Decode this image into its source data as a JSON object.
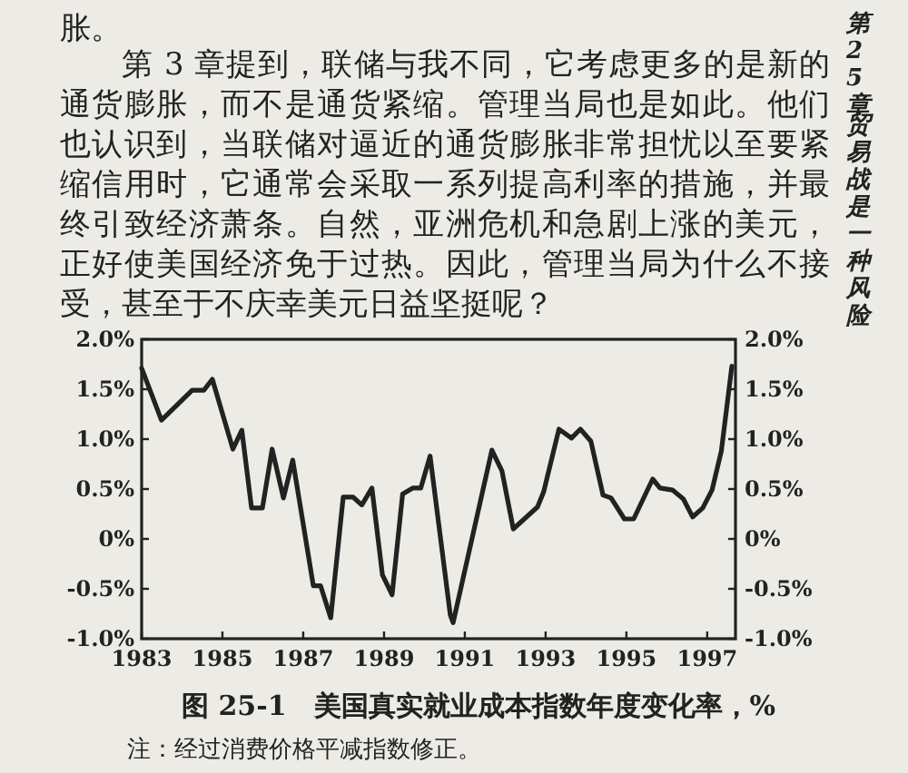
{
  "chart_data": {
    "type": "line",
    "title": "图 25-1　美国真实就业成本指数年度变化率，%",
    "annotations": [
      "胀。",
      "第 3 章提到，联储与我不同，它考虑更多的是新的通货膨胀，而不是通货紧缩。管理当局也是如此。他们也认识到，当联储对逼近的通货膨胀非常担忧以至要紧缩信用时，它通常会采取一系列提高利率的措施，并最终引致经济萧条。自然，亚洲危机和急剧上涨的美元，正好使美国经济免于过热。因此，管理当局为什么不接受，甚至于不庆幸美元日益坚挺呢？",
      "第25章",
      "贸易战是一种风险",
      "注：经过消费价格平减指数修正。"
    ],
    "x": [
      1983.0,
      1983.49,
      1984.25,
      1984.54,
      1984.75,
      1985.26,
      1985.48,
      1985.72,
      1985.99,
      1986.23,
      1986.51,
      1986.74,
      1987.25,
      1987.43,
      1987.68,
      1987.99,
      1988.23,
      1988.45,
      1988.7,
      1988.96,
      1989.2,
      1989.46,
      1989.71,
      1989.91,
      1990.14,
      1990.64,
      1990.71,
      1991.67,
      1991.92,
      1992.2,
      1992.8,
      1992.95,
      1993.33,
      1993.64,
      1993.86,
      1994.12,
      1994.42,
      1994.62,
      1994.95,
      1995.18,
      1995.65,
      1995.83,
      1996.14,
      1996.41,
      1996.64,
      1996.89,
      1997.12,
      1997.35,
      1997.61
    ],
    "series": [
      {
        "color": "#222222",
        "values": [
          1.71,
          1.19,
          1.49,
          1.49,
          1.6,
          0.9,
          1.09,
          0.31,
          0.31,
          0.9,
          0.41,
          0.79,
          -0.47,
          -0.47,
          -0.79,
          0.42,
          0.42,
          0.34,
          0.51,
          -0.36,
          -0.56,
          0.45,
          0.51,
          0.51,
          0.83,
          -0.76,
          -0.84,
          0.89,
          0.68,
          0.1,
          0.32,
          0.47,
          1.1,
          1.01,
          1.1,
          0.98,
          0.44,
          0.41,
          0.2,
          0.2,
          0.6,
          0.51,
          0.49,
          0.4,
          0.22,
          0.31,
          0.49,
          0.88,
          1.73
        ]
      }
    ],
    "xlim": [
      1983,
      1997.7
    ],
    "xticks": [
      1983,
      1985,
      1987,
      1989,
      1991,
      1993,
      1995,
      1997
    ],
    "ylim": [
      -1,
      2
    ],
    "yticks": [
      {
        "value": 2,
        "label": "2.0%"
      },
      {
        "value": 1.5,
        "label": "1.5%"
      },
      {
        "value": 1,
        "label": "1.0%"
      },
      {
        "value": 0.5,
        "label": "0.5%"
      },
      {
        "value": 0,
        "label": "0%"
      },
      {
        "value": -0.5,
        "label": "-0.5%"
      },
      {
        "value": -1,
        "label": "-1.0%"
      }
    ],
    "y2lim": [
      -1,
      2
    ],
    "y2ticks": [
      {
        "value": 2,
        "label": "2.0%"
      },
      {
        "value": 1.5,
        "label": "1.5%"
      },
      {
        "value": 1,
        "label": "1.0%"
      },
      {
        "value": 0.5,
        "label": "0.5%"
      },
      {
        "value": 0,
        "label": "0%"
      },
      {
        "value": -0.5,
        "label": "-0.5%"
      },
      {
        "value": -1,
        "label": "-1.0%"
      }
    ]
  }
}
